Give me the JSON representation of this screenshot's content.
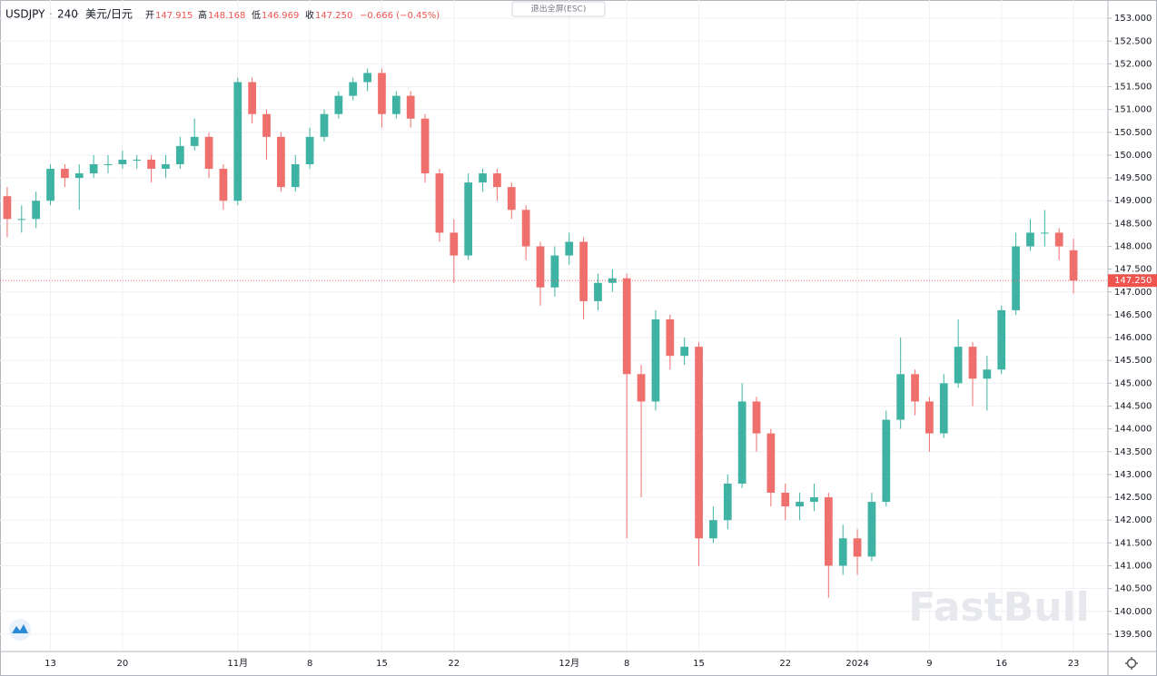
{
  "chart_data": {
    "type": "candlestick",
    "header": {
      "symbol": "USDJPY",
      "interval": "240",
      "name": "美元/日元",
      "open_label": "开",
      "open": "147.915",
      "high_label": "高",
      "high": "148.168",
      "low_label": "低",
      "low": "146.969",
      "close_label": "收",
      "close": "147.250",
      "change": "−0.666 (−0.45%)"
    },
    "exit_button": "退出全屏(ESC)",
    "watermark": "FastBull",
    "categories": [
      null,
      null,
      null,
      "13",
      null,
      null,
      null,
      null,
      "20",
      null,
      null,
      null,
      null,
      null,
      null,
      null,
      "11月",
      null,
      null,
      null,
      null,
      "8",
      null,
      null,
      null,
      null,
      "15",
      null,
      null,
      null,
      null,
      "22",
      null,
      null,
      null,
      null,
      null,
      null,
      null,
      "12月",
      null,
      null,
      null,
      "8",
      null,
      null,
      null,
      null,
      "15",
      null,
      null,
      null,
      null,
      null,
      "22",
      null,
      null,
      null,
      null,
      "2024",
      null,
      null,
      null,
      null,
      "9",
      null,
      null,
      null,
      null,
      "16",
      null,
      null,
      null,
      null,
      "23"
    ],
    "open": [
      149.1,
      148.6,
      148.6,
      149.0,
      149.7,
      149.5,
      149.6,
      149.8,
      149.8,
      149.9,
      149.9,
      149.7,
      149.8,
      150.2,
      150.4,
      149.7,
      149.0,
      151.6,
      150.9,
      150.4,
      149.3,
      149.8,
      150.4,
      150.9,
      151.3,
      151.6,
      151.8,
      150.9,
      151.3,
      150.8,
      149.6,
      148.3,
      147.8,
      149.4,
      149.6,
      149.3,
      148.8,
      148.0,
      147.1,
      147.8,
      148.1,
      146.8,
      147.2,
      147.3,
      145.2,
      144.6,
      146.4,
      145.6,
      145.8,
      141.6,
      142.0,
      142.8,
      144.6,
      143.9,
      142.6,
      142.3,
      142.4,
      142.5,
      141.0,
      141.6,
      141.2,
      142.4,
      144.2,
      145.2,
      144.6,
      143.9,
      145.0,
      145.8,
      145.1,
      145.3,
      146.6,
      148.0,
      148.3,
      148.3,
      147.915
    ],
    "high": [
      149.3,
      148.9,
      149.2,
      149.8,
      149.8,
      149.8,
      150.0,
      150.0,
      150.1,
      150.0,
      150.0,
      150.0,
      150.4,
      150.8,
      150.5,
      149.8,
      151.7,
      151.7,
      151.0,
      150.5,
      150.0,
      150.6,
      151.0,
      151.4,
      151.7,
      151.9,
      151.9,
      151.4,
      151.4,
      150.9,
      149.7,
      148.6,
      149.6,
      149.7,
      149.7,
      149.4,
      148.9,
      148.1,
      148.0,
      148.3,
      148.2,
      147.4,
      147.5,
      147.4,
      145.4,
      146.6,
      146.5,
      146.0,
      145.9,
      142.3,
      143.0,
      145.0,
      144.7,
      144.0,
      142.8,
      142.6,
      142.8,
      142.6,
      141.9,
      141.8,
      142.6,
      144.4,
      146.0,
      145.3,
      144.7,
      145.2,
      146.4,
      145.9,
      145.6,
      146.7,
      148.3,
      148.6,
      148.8,
      148.4,
      148.168
    ],
    "low": [
      148.2,
      148.3,
      148.4,
      148.9,
      149.3,
      148.8,
      149.5,
      149.6,
      149.7,
      149.7,
      149.4,
      149.5,
      149.7,
      150.1,
      149.5,
      148.8,
      148.9,
      150.7,
      149.9,
      149.2,
      149.2,
      149.7,
      150.3,
      150.8,
      151.2,
      151.4,
      150.6,
      150.8,
      150.6,
      149.4,
      148.1,
      147.2,
      147.7,
      149.2,
      149.0,
      148.6,
      147.7,
      146.7,
      146.9,
      147.6,
      146.4,
      146.6,
      147.0,
      141.6,
      142.5,
      144.4,
      145.3,
      145.4,
      141.0,
      141.5,
      141.8,
      142.7,
      143.5,
      142.3,
      142.0,
      142.0,
      142.2,
      140.3,
      140.8,
      140.8,
      141.1,
      142.3,
      144.0,
      144.3,
      143.5,
      143.8,
      144.9,
      144.5,
      144.4,
      145.2,
      146.5,
      147.9,
      148.0,
      147.7,
      146.969
    ],
    "close": [
      148.6,
      148.6,
      149.0,
      149.7,
      149.5,
      149.6,
      149.8,
      149.8,
      149.9,
      149.9,
      149.7,
      149.8,
      150.2,
      150.4,
      149.7,
      149.0,
      151.6,
      150.9,
      150.4,
      149.3,
      149.8,
      150.4,
      150.9,
      151.3,
      151.6,
      151.8,
      150.9,
      151.3,
      150.8,
      149.6,
      148.3,
      147.8,
      149.4,
      149.6,
      149.3,
      148.8,
      148.0,
      147.1,
      147.8,
      148.1,
      146.8,
      147.2,
      147.3,
      145.2,
      144.6,
      146.4,
      145.6,
      145.8,
      141.6,
      142.0,
      142.8,
      144.6,
      143.9,
      142.6,
      142.3,
      142.4,
      142.5,
      141.0,
      141.6,
      141.2,
      142.4,
      144.2,
      145.2,
      144.6,
      143.9,
      145.0,
      145.8,
      145.1,
      145.3,
      146.6,
      148.0,
      148.3,
      148.3,
      148.0,
      147.25
    ],
    "up_color": "#3fb3a3",
    "down_color": "#ef6f6c",
    "last_price": {
      "value": 147.25,
      "label": "147.250"
    },
    "ylim": [
      139.12,
      153.4
    ],
    "yticks": [
      {
        "value": 139.5,
        "label": "139.500"
      },
      {
        "value": 140,
        "label": "140.000"
      },
      {
        "value": 140.5,
        "label": "140.500"
      },
      {
        "value": 141,
        "label": "141.000"
      },
      {
        "value": 141.5,
        "label": "141.500"
      },
      {
        "value": 142,
        "label": "142.000"
      },
      {
        "value": 142.5,
        "label": "142.500"
      },
      {
        "value": 143,
        "label": "143.000"
      },
      {
        "value": 143.5,
        "label": "143.500"
      },
      {
        "value": 144,
        "label": "144.000"
      },
      {
        "value": 144.5,
        "label": "144.500"
      },
      {
        "value": 145,
        "label": "145.000"
      },
      {
        "value": 145.5,
        "label": "145.500"
      },
      {
        "value": 146,
        "label": "146.000"
      },
      {
        "value": 146.5,
        "label": "146.500"
      },
      {
        "value": 147,
        "label": "147.000"
      },
      {
        "value": 147.5,
        "label": "147.500"
      },
      {
        "value": 148,
        "label": "148.000"
      },
      {
        "value": 148.5,
        "label": "148.500"
      },
      {
        "value": 149,
        "label": "149.000"
      },
      {
        "value": 149.5,
        "label": "149.500"
      },
      {
        "value": 150,
        "label": "150.000"
      },
      {
        "value": 150.5,
        "label": "150.500"
      },
      {
        "value": 151,
        "label": "151.000"
      },
      {
        "value": 151.5,
        "label": "151.500"
      },
      {
        "value": 152,
        "label": "152.000"
      },
      {
        "value": 152.5,
        "label": "152.500"
      },
      {
        "value": 153,
        "label": "153.000"
      }
    ],
    "grid": true
  }
}
